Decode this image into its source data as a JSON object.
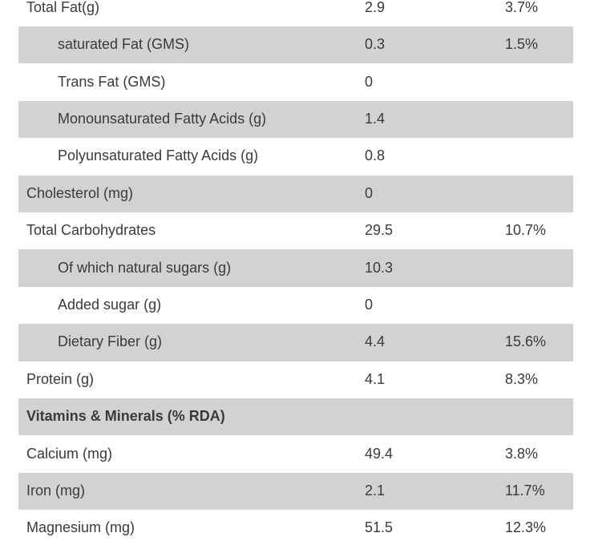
{
  "table": {
    "columns": [
      "nutrient",
      "amount",
      "percent_rda"
    ],
    "colors": {
      "shaded_bg": "#d2d2d2",
      "text": "#3a3a3a",
      "page_bg": "#ffffff"
    },
    "rows": [
      {
        "label": "Total Fat(g)",
        "amount": "2.9",
        "percent": "3.7%",
        "indent": false,
        "shaded": false,
        "header": false
      },
      {
        "label": "saturated Fat (GMS)",
        "amount": "0.3",
        "percent": "1.5%",
        "indent": true,
        "shaded": true,
        "header": false
      },
      {
        "label": "Trans Fat (GMS)",
        "amount": "0",
        "percent": "",
        "indent": true,
        "shaded": false,
        "header": false
      },
      {
        "label": "Monounsaturated Fatty Acids (g)",
        "amount": "1.4",
        "percent": "",
        "indent": true,
        "shaded": true,
        "header": false
      },
      {
        "label": "Polyunsaturated Fatty Acids (g)",
        "amount": "0.8",
        "percent": "",
        "indent": true,
        "shaded": false,
        "header": false
      },
      {
        "label": "Cholesterol (mg)",
        "amount": "0",
        "percent": "",
        "indent": false,
        "shaded": true,
        "header": false
      },
      {
        "label": "Total Carbohydrates",
        "amount": "29.5",
        "percent": "10.7%",
        "indent": false,
        "shaded": false,
        "header": false
      },
      {
        "label": "Of which natural sugars (g)",
        "amount": "10.3",
        "percent": "",
        "indent": true,
        "shaded": true,
        "header": false
      },
      {
        "label": "Added sugar (g)",
        "amount": "0",
        "percent": "",
        "indent": true,
        "shaded": false,
        "header": false
      },
      {
        "label": "Dietary Fiber (g)",
        "amount": "4.4",
        "percent": "15.6%",
        "indent": true,
        "shaded": true,
        "header": false
      },
      {
        "label": "Protein (g)",
        "amount": "4.1",
        "percent": "8.3%",
        "indent": false,
        "shaded": false,
        "header": false
      },
      {
        "label": "Vitamins & Minerals (% RDA)",
        "amount": "",
        "percent": "",
        "indent": false,
        "shaded": true,
        "header": true
      },
      {
        "label": "Calcium (mg)",
        "amount": "49.4",
        "percent": "3.8%",
        "indent": false,
        "shaded": false,
        "header": false
      },
      {
        "label": "Iron (mg)",
        "amount": "2.1",
        "percent": "11.7%",
        "indent": false,
        "shaded": true,
        "header": false
      },
      {
        "label": "Magnesium (mg)",
        "amount": "51.5",
        "percent": "12.3%",
        "indent": false,
        "shaded": false,
        "header": false
      }
    ]
  }
}
